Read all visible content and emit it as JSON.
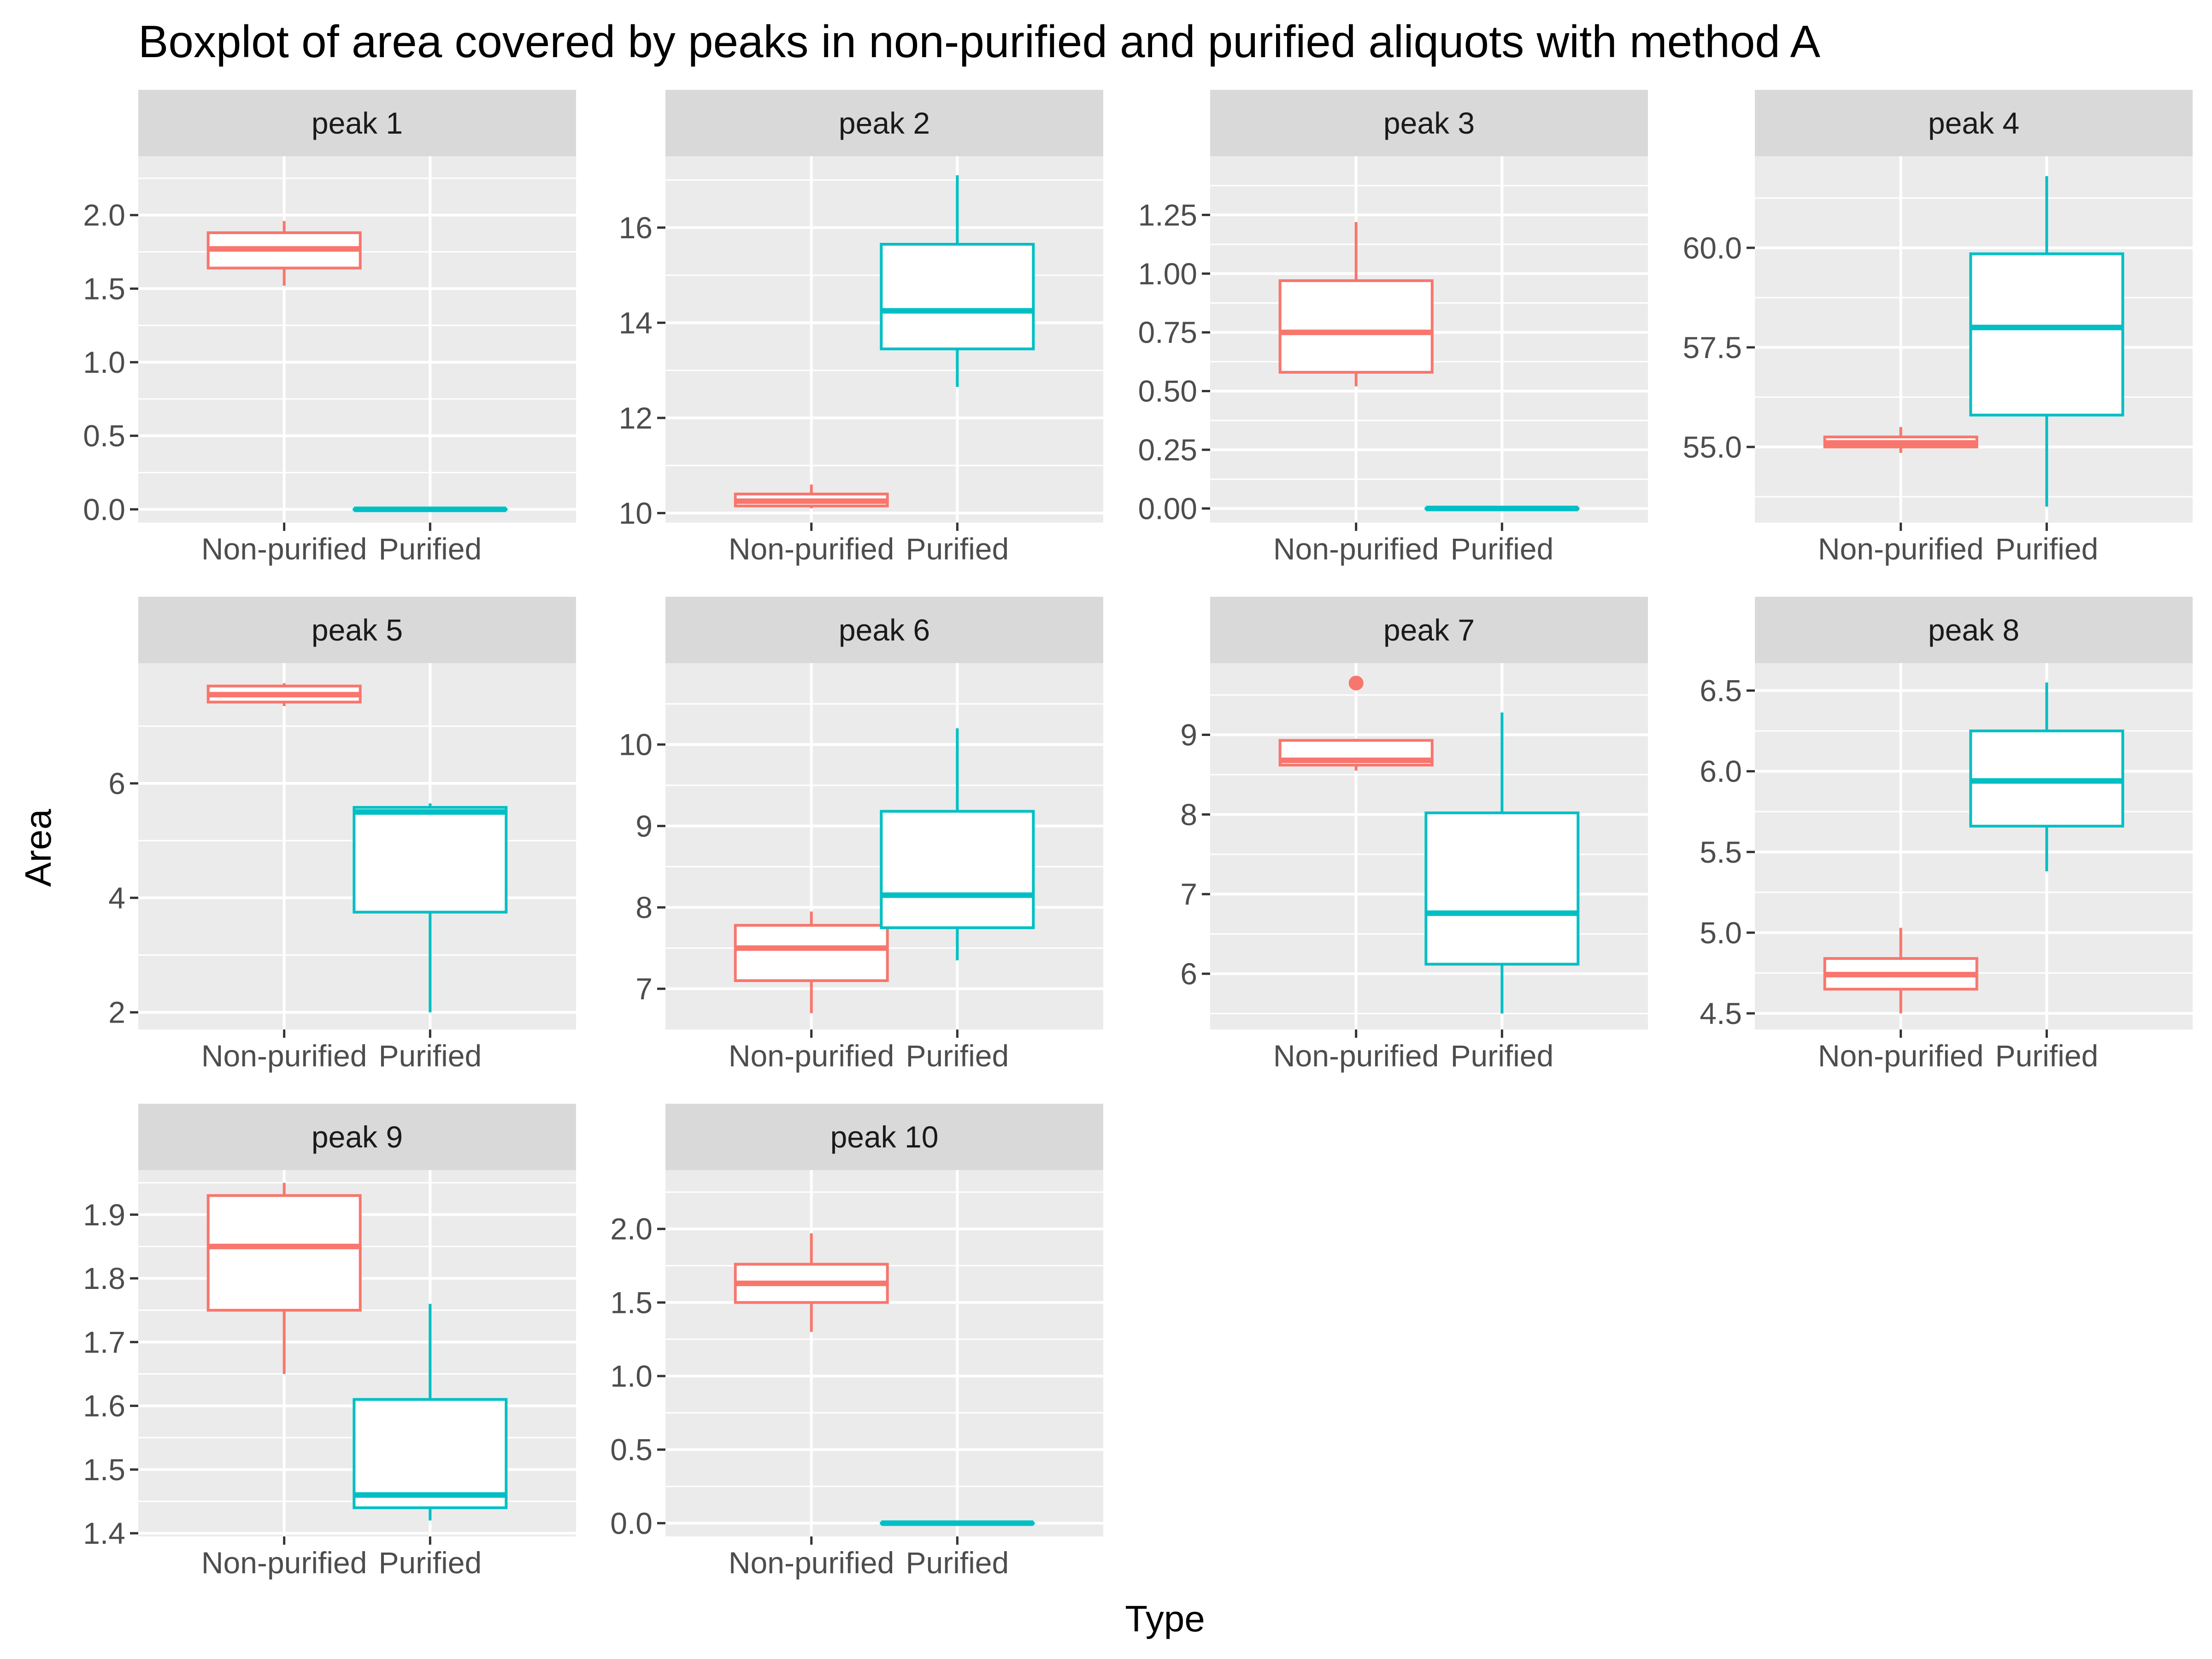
{
  "chart_data": {
    "type": "boxplot",
    "title": "Boxplot of area covered by peaks in non-purified and purified aliquots with method A",
    "xlabel": "Type",
    "ylabel": "Area",
    "categories": [
      "Non-purified",
      "Purified"
    ],
    "colors": {
      "Non-purified": "#F8766D",
      "Purified": "#00BFC4"
    },
    "grid": true,
    "legend": "none",
    "facets": [
      {
        "label": "peak 1",
        "ylim": [
          -0.09,
          2.4
        ],
        "yticks": [
          0.0,
          0.5,
          1.0,
          1.5,
          2.0
        ],
        "ytick_labels": [
          "0.0",
          "0.5",
          "1.0",
          "1.5",
          "2.0"
        ],
        "boxes": [
          {
            "type": "Non-purified",
            "whisker_low": 1.52,
            "q1": 1.64,
            "median": 1.77,
            "q3": 1.88,
            "whisker_high": 1.96,
            "outliers": []
          },
          {
            "type": "Purified",
            "whisker_low": 0.0,
            "q1": 0.0,
            "median": 0.0,
            "q3": 0.0,
            "whisker_high": 0.0,
            "outliers": []
          }
        ]
      },
      {
        "label": "peak 2",
        "ylim": [
          9.8,
          17.5
        ],
        "yticks": [
          10,
          12,
          14,
          16
        ],
        "ytick_labels": [
          "10",
          "12",
          "14",
          "16"
        ],
        "boxes": [
          {
            "type": "Non-purified",
            "whisker_low": 10.1,
            "q1": 10.15,
            "median": 10.25,
            "q3": 10.4,
            "whisker_high": 10.6,
            "outliers": []
          },
          {
            "type": "Purified",
            "whisker_low": 12.65,
            "q1": 13.45,
            "median": 14.25,
            "q3": 15.65,
            "whisker_high": 17.1,
            "outliers": []
          }
        ]
      },
      {
        "label": "peak 3",
        "ylim": [
          -0.06,
          1.5
        ],
        "yticks": [
          0.0,
          0.25,
          0.5,
          0.75,
          1.0,
          1.25
        ],
        "ytick_labels": [
          "0.00",
          "0.25",
          "0.50",
          "0.75",
          "1.00",
          "1.25"
        ],
        "boxes": [
          {
            "type": "Non-purified",
            "whisker_low": 0.52,
            "q1": 0.58,
            "median": 0.75,
            "q3": 0.97,
            "whisker_high": 1.22,
            "outliers": []
          },
          {
            "type": "Purified",
            "whisker_low": 0.0,
            "q1": 0.0,
            "median": 0.0,
            "q3": 0.0,
            "whisker_high": 0.0,
            "outliers": []
          }
        ]
      },
      {
        "label": "peak 4",
        "ylim": [
          53.1,
          62.3
        ],
        "yticks": [
          55.0,
          57.5,
          60.0
        ],
        "ytick_labels": [
          "55.0",
          "57.5",
          "60.0"
        ],
        "boxes": [
          {
            "type": "Non-purified",
            "whisker_low": 54.85,
            "q1": 55.0,
            "median": 55.1,
            "q3": 55.25,
            "whisker_high": 55.5,
            "outliers": []
          },
          {
            "type": "Purified",
            "whisker_low": 53.5,
            "q1": 55.8,
            "median": 58.0,
            "q3": 59.85,
            "whisker_high": 61.8,
            "outliers": []
          }
        ]
      },
      {
        "label": "peak 5",
        "ylim": [
          1.7,
          8.1
        ],
        "yticks": [
          2,
          4,
          6
        ],
        "ytick_labels": [
          "2",
          "4",
          "6"
        ],
        "boxes": [
          {
            "type": "Non-purified",
            "whisker_low": 7.35,
            "q1": 7.42,
            "median": 7.55,
            "q3": 7.7,
            "whisker_high": 7.75,
            "outliers": []
          },
          {
            "type": "Purified",
            "whisker_low": 2.0,
            "q1": 3.75,
            "median": 5.5,
            "q3": 5.58,
            "whisker_high": 5.65,
            "outliers": []
          }
        ]
      },
      {
        "label": "peak 6",
        "ylim": [
          6.5,
          11.0
        ],
        "yticks": [
          7,
          8,
          9,
          10
        ],
        "ytick_labels": [
          "7",
          "8",
          "9",
          "10"
        ],
        "boxes": [
          {
            "type": "Non-purified",
            "whisker_low": 6.7,
            "q1": 7.1,
            "median": 7.5,
            "q3": 7.78,
            "whisker_high": 7.95,
            "outliers": []
          },
          {
            "type": "Purified",
            "whisker_low": 7.35,
            "q1": 7.75,
            "median": 8.15,
            "q3": 9.18,
            "whisker_high": 10.2,
            "outliers": []
          }
        ]
      },
      {
        "label": "peak 7",
        "ylim": [
          5.3,
          9.9
        ],
        "yticks": [
          6,
          7,
          8,
          9
        ],
        "ytick_labels": [
          "6",
          "7",
          "8",
          "9"
        ],
        "boxes": [
          {
            "type": "Non-purified",
            "whisker_low": 8.55,
            "q1": 8.62,
            "median": 8.68,
            "q3": 8.93,
            "whisker_high": 8.95,
            "outliers": [
              9.65
            ]
          },
          {
            "type": "Purified",
            "whisker_low": 5.5,
            "q1": 6.12,
            "median": 6.76,
            "q3": 8.02,
            "whisker_high": 9.28,
            "outliers": []
          }
        ]
      },
      {
        "label": "peak 8",
        "ylim": [
          4.4,
          6.67
        ],
        "yticks": [
          4.5,
          5.0,
          5.5,
          6.0,
          6.5
        ],
        "ytick_labels": [
          "4.5",
          "5.0",
          "5.5",
          "6.0",
          "6.5"
        ],
        "boxes": [
          {
            "type": "Non-purified",
            "whisker_low": 4.5,
            "q1": 4.65,
            "median": 4.74,
            "q3": 4.84,
            "whisker_high": 5.03,
            "outliers": []
          },
          {
            "type": "Purified",
            "whisker_low": 5.38,
            "q1": 5.66,
            "median": 5.94,
            "q3": 6.25,
            "whisker_high": 6.55,
            "outliers": []
          }
        ]
      },
      {
        "label": "peak 9",
        "ylim": [
          1.395,
          1.97
        ],
        "yticks": [
          1.4,
          1.5,
          1.6,
          1.7,
          1.8,
          1.9
        ],
        "ytick_labels": [
          "1.4",
          "1.5",
          "1.6",
          "1.7",
          "1.8",
          "1.9"
        ],
        "boxes": [
          {
            "type": "Non-purified",
            "whisker_low": 1.65,
            "q1": 1.75,
            "median": 1.85,
            "q3": 1.93,
            "whisker_high": 1.95,
            "outliers": []
          },
          {
            "type": "Purified",
            "whisker_low": 1.42,
            "q1": 1.44,
            "median": 1.46,
            "q3": 1.61,
            "whisker_high": 1.76,
            "outliers": []
          }
        ]
      },
      {
        "label": "peak 10",
        "ylim": [
          -0.09,
          2.4
        ],
        "yticks": [
          0.0,
          0.5,
          1.0,
          1.5,
          2.0
        ],
        "ytick_labels": [
          "0.0",
          "0.5",
          "1.0",
          "1.5",
          "2.0"
        ],
        "boxes": [
          {
            "type": "Non-purified",
            "whisker_low": 1.3,
            "q1": 1.5,
            "median": 1.63,
            "q3": 1.76,
            "whisker_high": 1.97,
            "outliers": []
          },
          {
            "type": "Purified",
            "whisker_low": 0.0,
            "q1": 0.0,
            "median": 0.0,
            "q3": 0.0,
            "whisker_high": 0.0,
            "outliers": []
          }
        ]
      }
    ]
  }
}
